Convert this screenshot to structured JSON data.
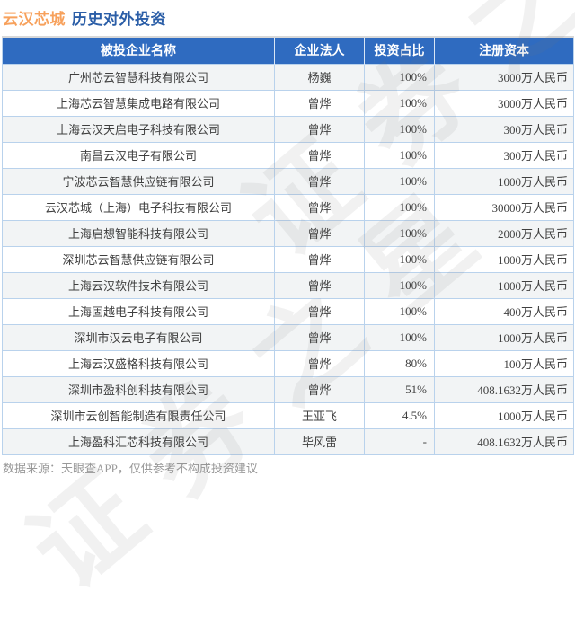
{
  "page": {
    "title_company": "云汉芯城",
    "title_suffix": "历史对外投资",
    "footer": "数据来源：天眼查APP，仅供参考不构成投资建议",
    "watermark": "证券之星"
  },
  "colors": {
    "title_company": "#f7a15c",
    "title_suffix": "#2b5ea7",
    "header_bg": "#2f6bc0",
    "header_text": "#ffffff",
    "table_border": "#b9d2ec",
    "row_alt_bg": "#f2f4f5",
    "body_text": "#3f3f3f",
    "footer_text": "#999999"
  },
  "chart_data": {
    "type": "table",
    "title": "云汉芯城 历史对外投资",
    "columns": [
      "被投企业名称",
      "企业法人",
      "投资占比",
      "注册资本"
    ],
    "rows": [
      [
        "广州芯云智慧科技有限公司",
        "杨巍",
        "100%",
        "3000万人民币"
      ],
      [
        "上海芯云智慧集成电路有限公司",
        "曾烨",
        "100%",
        "3000万人民币"
      ],
      [
        "上海云汉天启电子科技有限公司",
        "曾烨",
        "100%",
        "300万人民币"
      ],
      [
        "南昌云汉电子有限公司",
        "曾烨",
        "100%",
        "300万人民币"
      ],
      [
        "宁波芯云智慧供应链有限公司",
        "曾烨",
        "100%",
        "1000万人民币"
      ],
      [
        "云汉芯城（上海）电子科技有限公司",
        "曾烨",
        "100%",
        "30000万人民币"
      ],
      [
        "上海启想智能科技有限公司",
        "曾烨",
        "100%",
        "2000万人民币"
      ],
      [
        "深圳芯云智慧供应链有限公司",
        "曾烨",
        "100%",
        "1000万人民币"
      ],
      [
        "上海云汉软件技术有限公司",
        "曾烨",
        "100%",
        "1000万人民币"
      ],
      [
        "上海固越电子科技有限公司",
        "曾烨",
        "100%",
        "400万人民币"
      ],
      [
        "深圳市汉云电子有限公司",
        "曾烨",
        "100%",
        "1000万人民币"
      ],
      [
        "上海云汉盛格科技有限公司",
        "曾烨",
        "80%",
        "100万人民币"
      ],
      [
        "深圳市盈科创科技有限公司",
        "曾烨",
        "51%",
        "408.1632万人民币"
      ],
      [
        "深圳市云创智能制造有限责任公司",
        "王亚飞",
        "4.5%",
        "1000万人民币"
      ],
      [
        "上海盈科汇芯科技有限公司",
        "毕风雷",
        "-",
        "408.1632万人民币"
      ]
    ]
  }
}
